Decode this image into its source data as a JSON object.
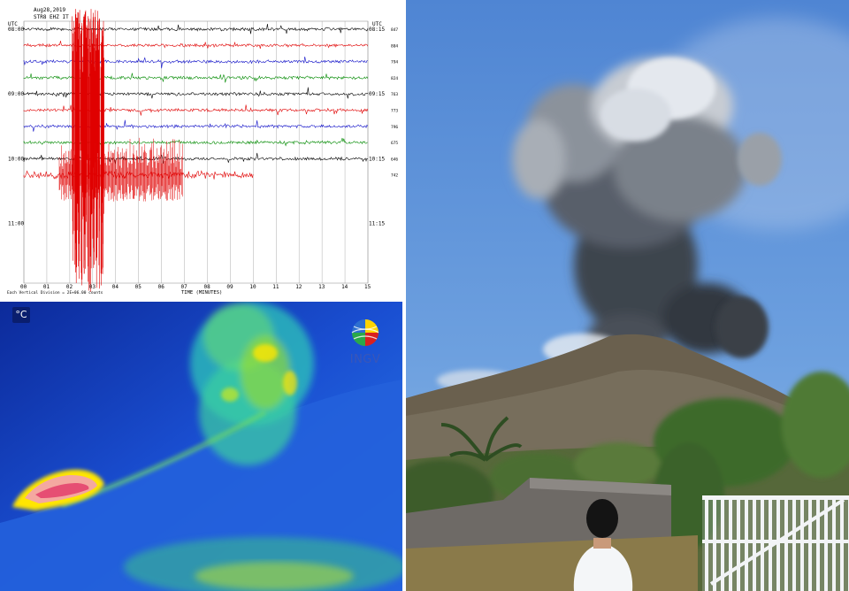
{
  "seismogram": {
    "date": "Aug28,2019",
    "station": "STR8 EHZ IT",
    "utc_label_left": "UTC",
    "utc_label_right": "UTC",
    "rows": [
      {
        "left": "08:00",
        "right": "08:15",
        "code": "847",
        "color": "#000000"
      },
      {
        "left": "",
        "right": "",
        "code": "804",
        "color": "#e00000"
      },
      {
        "left": "",
        "right": "",
        "code": "794",
        "color": "#1010c8"
      },
      {
        "left": "",
        "right": "",
        "code": "824",
        "color": "#008a00"
      },
      {
        "left": "09:00",
        "right": "09:15",
        "code": "763",
        "color": "#000000"
      },
      {
        "left": "",
        "right": "",
        "code": "773",
        "color": "#e00000"
      },
      {
        "left": "",
        "right": "",
        "code": "796",
        "color": "#1010c8"
      },
      {
        "left": "",
        "right": "",
        "code": "675",
        "color": "#008a00"
      },
      {
        "left": "10:00",
        "right": "10:15",
        "code": "646",
        "color": "#000000"
      },
      {
        "left": "",
        "right": "",
        "code": "742",
        "color": "#e00000"
      },
      {
        "left": "",
        "right": "",
        "code": "",
        "color": ""
      },
      {
        "left": "",
        "right": "",
        "code": "",
        "color": ""
      },
      {
        "left": "11:00",
        "right": "11:15",
        "code": "",
        "color": ""
      }
    ],
    "x_ticks": [
      "00",
      "01",
      "02",
      "03",
      "04",
      "05",
      "06",
      "07",
      "08",
      "09",
      "10",
      "11",
      "12",
      "13",
      "14",
      "15"
    ],
    "xlabel": "TIME (MINUTES)",
    "footnote": "Each Vertical Division = 2E+06.00 counts"
  },
  "thermal": {
    "unit_badge": "°C",
    "logo_text": "INGV",
    "colors": {
      "bg": "#1c54d6",
      "hot": "#ffe600",
      "warm": "#9edc2a",
      "core": "#e02860"
    }
  },
  "photo": {
    "colors": {
      "sky": "#5b8fd6",
      "ash_dark": "#3e444e",
      "ash_light": "#e4e8ee",
      "slope": "#6e6450",
      "fence": "#f2f4f6",
      "vegetation": "#4f7a34"
    }
  }
}
